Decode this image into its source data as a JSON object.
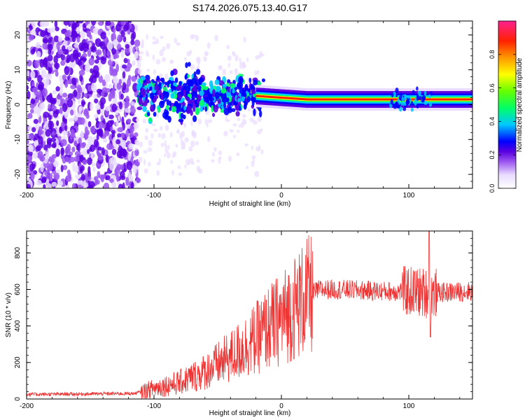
{
  "figure": {
    "title": "S174.2026.075.13.40.G17"
  },
  "chart_data": [
    {
      "type": "heatmap",
      "title": "S174.2026.075.13.40.G17",
      "xlabel": "Height of straight line (km)",
      "ylabel": "Frequency (Hz)",
      "xlim": [
        -200,
        150
      ],
      "ylim": [
        -24,
        24
      ],
      "xticks": [
        -200,
        -100,
        0,
        100
      ],
      "yticks": [
        -20,
        -10,
        0,
        10,
        20
      ],
      "xtick_labels": [
        "-200",
        "-100",
        "0",
        "100"
      ],
      "ytick_labels": [
        "-20",
        "-10",
        "0",
        "10",
        "20"
      ],
      "colorbar": {
        "label": "Normalized spectral amplitude",
        "range": [
          0,
          1
        ],
        "ticks": [
          0.0,
          0.2,
          0.4,
          0.6,
          0.8
        ],
        "tick_labels": [
          "0.0",
          "0.2",
          "0.4",
          "0.6",
          "0.8"
        ],
        "colormap": [
          "#ffffff",
          "#e9dcff",
          "#9a55f0",
          "#5a00e0",
          "#0000ff",
          "#00c8ff",
          "#00ff66",
          "#66ff00",
          "#ffff00",
          "#ff9900",
          "#ff2200",
          "#ff2090"
        ]
      },
      "ridge": {
        "description_points": [
          {
            "x": -110,
            "f": 3.0
          },
          {
            "x": -60,
            "f": 2.5
          },
          {
            "x": -20,
            "f": 2.5
          },
          {
            "x": 0,
            "f": 2.0
          },
          {
            "x": 20,
            "f": 1.5
          },
          {
            "x": 60,
            "f": 1.5
          },
          {
            "x": 100,
            "f": 1.5
          },
          {
            "x": 150,
            "f": 1.5
          }
        ]
      }
    },
    {
      "type": "line",
      "xlabel": "Height of straight line (km)",
      "ylabel": "SNR (10 * v/v)",
      "xlim": [
        -200,
        150
      ],
      "ylim": [
        0,
        920
      ],
      "xticks": [
        -200,
        -100,
        0,
        100
      ],
      "yticks": [
        0,
        200,
        400,
        600,
        800
      ],
      "xtick_labels": [
        "-200",
        "-100",
        "0",
        "100"
      ],
      "ytick_labels": [
        "0",
        "200",
        "400",
        "600",
        "800"
      ],
      "line_color": "#ee3333",
      "trend": [
        {
          "x": -200,
          "y": 25
        },
        {
          "x": -115,
          "y": 30
        },
        {
          "x": -100,
          "y": 60
        },
        {
          "x": -80,
          "y": 90
        },
        {
          "x": -60,
          "y": 150
        },
        {
          "x": -40,
          "y": 230
        },
        {
          "x": -30,
          "y": 280
        },
        {
          "x": -20,
          "y": 330
        },
        {
          "x": -10,
          "y": 390
        },
        {
          "x": 0,
          "y": 440
        },
        {
          "x": 10,
          "y": 500
        },
        {
          "x": 20,
          "y": 560
        },
        {
          "x": 30,
          "y": 600
        },
        {
          "x": 45,
          "y": 600
        },
        {
          "x": 80,
          "y": 590
        },
        {
          "x": 100,
          "y": 590
        },
        {
          "x": 115,
          "y": 580
        },
        {
          "x": 150,
          "y": 590
        }
      ],
      "peak": {
        "x": 116,
        "y": 920
      },
      "dip": {
        "x": 116,
        "y": 340
      }
    }
  ]
}
